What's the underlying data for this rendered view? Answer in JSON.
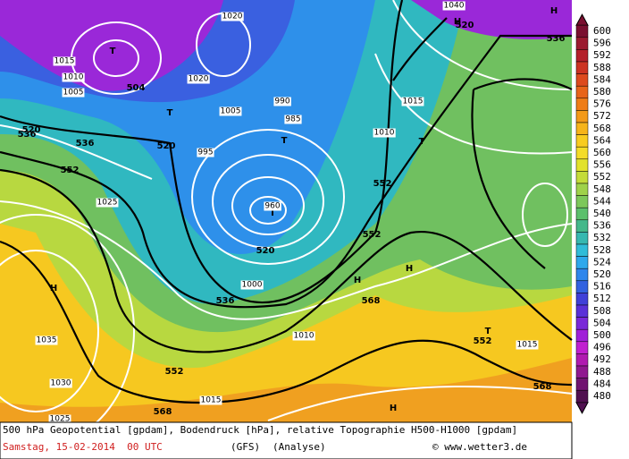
{
  "map": {
    "labels_bold": [
      "520",
      "536",
      "552",
      "504",
      "520",
      "520",
      "536",
      "552",
      "552",
      "552",
      "568",
      "568",
      "552",
      "568",
      "536",
      "520",
      "536",
      "T",
      "T",
      "T",
      "T",
      "T",
      "T",
      "H",
      "H",
      "H",
      "H",
      "H",
      "H"
    ],
    "labels_pressure": [
      "1015",
      "1010",
      "1005",
      "1035",
      "1030",
      "1025",
      "1020",
      "990",
      "995",
      "985",
      "960",
      "1000",
      "1015",
      "1010",
      "1015",
      "1020",
      "1015",
      "1005",
      "1010",
      "1040",
      "1025"
    ]
  },
  "colorbar": {
    "labels": [
      600,
      596,
      592,
      588,
      584,
      580,
      576,
      572,
      568,
      564,
      560,
      556,
      552,
      548,
      544,
      540,
      536,
      532,
      528,
      524,
      520,
      516,
      512,
      508,
      504,
      500,
      496,
      492,
      488,
      484,
      480
    ],
    "colors": [
      "#7a1030",
      "#9b1b30",
      "#b4202a",
      "#cc3322",
      "#dd4a1e",
      "#e8641a",
      "#ef7d18",
      "#f39a18",
      "#f6b41a",
      "#f8cc20",
      "#f4dc28",
      "#e2e22c",
      "#c4dc3a",
      "#9fd24a",
      "#7cc85a",
      "#5cc06c",
      "#44b88a",
      "#36b8b0",
      "#30bcd8",
      "#2ea8ec",
      "#2e86ec",
      "#3262e0",
      "#4040d8",
      "#5a30d8",
      "#7a28d8",
      "#a020d8",
      "#c020d0",
      "#b01ab0",
      "#901890",
      "#701470",
      "#501050"
    ]
  },
  "footer": {
    "line1": "500 hPa Geopotential [gpdam], Bodendruck [hPa], relative Topographie H500-H1000 [gpdam]",
    "date": "Samstag, 15-02-2014  00 UTC",
    "model": "(GFS)",
    "run": "(Analyse)",
    "credit": "© www.wetter3.de"
  }
}
